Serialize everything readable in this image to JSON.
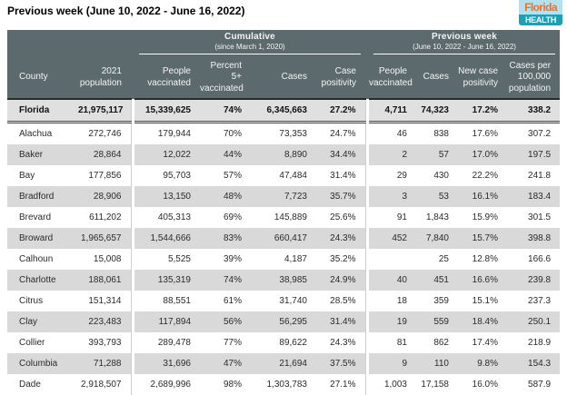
{
  "page_title": "Previous week (June 10, 2022 - June 16, 2022)",
  "logo": {
    "top": "Florida",
    "bottom": "HEALTH"
  },
  "colors": {
    "header_bg": "#5c6a6e",
    "row_alt": "#d9d9d9",
    "state_row_bg": "#e0e0e0",
    "sep_line": "#cfcfcf",
    "border_dark": "#2a2a2a",
    "logo_teal": "#1ba0b5",
    "logo_orange": "#f26f21",
    "logo_blue": "#b3e1ed"
  },
  "table": {
    "group_headers": [
      {
        "title": "Cumulative",
        "subtitle": "(since March 1, 2020)"
      },
      {
        "title": "Previous week",
        "subtitle": "(June 10, 2022 - June 16, 2022)"
      }
    ],
    "columns": [
      "County",
      "2021 population",
      "People vaccinated",
      "Percent 5+ vaccinated",
      "Cases",
      "Case positivity",
      "People vaccinated",
      "Cases",
      "New case positivity",
      "Cases per 100,000 population"
    ],
    "rows": [
      {
        "county": "Florida",
        "emphasis": true,
        "values": [
          "21,975,117",
          "15,339,625",
          "74%",
          "6,345,663",
          "27.2%",
          "4,711",
          "74,323",
          "17.2%",
          "338.2"
        ]
      },
      {
        "county": "Alachua",
        "values": [
          "272,746",
          "179,944",
          "70%",
          "73,353",
          "24.7%",
          "46",
          "838",
          "17.6%",
          "307.2"
        ]
      },
      {
        "county": "Baker",
        "values": [
          "28,864",
          "12,022",
          "44%",
          "8,890",
          "34.4%",
          "2",
          "57",
          "17.0%",
          "197.5"
        ]
      },
      {
        "county": "Bay",
        "values": [
          "177,856",
          "95,703",
          "57%",
          "47,484",
          "31.4%",
          "29",
          "430",
          "22.2%",
          "241.8"
        ]
      },
      {
        "county": "Bradford",
        "values": [
          "28,906",
          "13,150",
          "48%",
          "7,723",
          "35.7%",
          "3",
          "53",
          "16.1%",
          "183.4"
        ]
      },
      {
        "county": "Brevard",
        "values": [
          "611,202",
          "405,313",
          "69%",
          "145,889",
          "25.6%",
          "91",
          "1,843",
          "15.9%",
          "301.5"
        ]
      },
      {
        "county": "Broward",
        "values": [
          "1,965,657",
          "1,544,666",
          "83%",
          "660,417",
          "24.3%",
          "452",
          "7,840",
          "15.7%",
          "398.8"
        ]
      },
      {
        "county": "Calhoun",
        "values": [
          "15,008",
          "5,525",
          "39%",
          "4,187",
          "35.2%",
          "",
          "25",
          "12.8%",
          "166.6"
        ]
      },
      {
        "county": "Charlotte",
        "values": [
          "188,061",
          "135,319",
          "74%",
          "38,985",
          "24.9%",
          "40",
          "451",
          "16.6%",
          "239.8"
        ]
      },
      {
        "county": "Citrus",
        "values": [
          "151,314",
          "88,551",
          "61%",
          "31,740",
          "28.5%",
          "18",
          "359",
          "15.1%",
          "237.3"
        ]
      },
      {
        "county": "Clay",
        "values": [
          "223,483",
          "117,894",
          "56%",
          "56,295",
          "31.4%",
          "19",
          "559",
          "18.4%",
          "250.1"
        ]
      },
      {
        "county": "Collier",
        "values": [
          "393,793",
          "289,478",
          "77%",
          "89,622",
          "24.3%",
          "81",
          "862",
          "17.4%",
          "218.9"
        ]
      },
      {
        "county": "Columbia",
        "values": [
          "71,288",
          "31,696",
          "47%",
          "21,694",
          "37.5%",
          "9",
          "110",
          "9.8%",
          "154.3"
        ]
      },
      {
        "county": "Dade",
        "values": [
          "2,918,507",
          "2,689,996",
          "98%",
          "1,303,783",
          "27.1%",
          "1,003",
          "17,158",
          "16.0%",
          "587.9"
        ]
      }
    ]
  }
}
